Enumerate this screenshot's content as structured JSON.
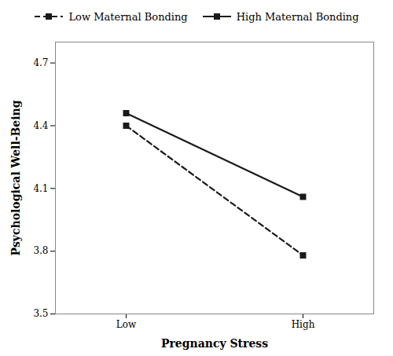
{
  "chart_data": {
    "type": "line",
    "categories": [
      "Low",
      "High"
    ],
    "xlabel": "Pregnancy Stress",
    "ylabel": "Psychological Well-Being",
    "ylim": [
      3.5,
      4.8
    ],
    "yticks": [
      3.5,
      3.8,
      4.1,
      4.4,
      4.7
    ],
    "grid": false,
    "legend": "top",
    "series": [
      {
        "name": "Low Maternal Bonding",
        "color": "#1a1a1a",
        "line_style": "dashed",
        "marker": "square",
        "values": [
          4.4,
          3.78
        ]
      },
      {
        "name": "High Maternal Bonding",
        "color": "#1a1a1a",
        "line_style": "solid",
        "marker": "square",
        "values": [
          4.46,
          4.06
        ]
      }
    ]
  }
}
